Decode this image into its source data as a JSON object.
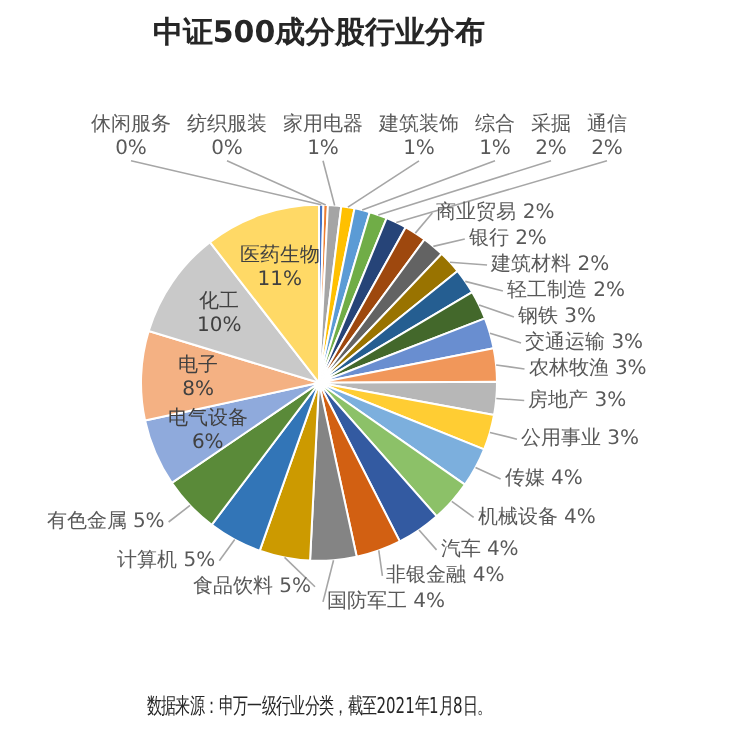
{
  "chart_data": {
    "type": "pie",
    "title": "中证500成分股行业分布",
    "categories": [
      "休闲服务",
      "纺织服装",
      "家用电器",
      "建筑装饰",
      "综合",
      "采掘",
      "通信",
      "商业贸易",
      "银行",
      "建筑材料",
      "轻工制造",
      "钢铁",
      "交通运输",
      "农林牧渔",
      "房地产",
      "公用事业",
      "传媒",
      "机械设备",
      "汽车",
      "非银金融",
      "国防军工",
      "食品饮料",
      "计算机",
      "有色金属",
      "电气设备",
      "电子",
      "化工",
      "医药生物"
    ],
    "values": [
      0.4,
      0.4,
      1.2,
      1.2,
      1.4,
      1.6,
      1.9,
      2.0,
      2.0,
      2.1,
      2.3,
      2.6,
      2.8,
      3.0,
      3.0,
      3.2,
      3.6,
      3.8,
      4.0,
      4.1,
      4.2,
      4.6,
      4.9,
      5.2,
      6.1,
      8.1,
      9.8,
      10.5
    ],
    "value_labels": [
      "0%",
      "0%",
      "1%",
      "1%",
      "1%",
      "2%",
      "2%",
      "2%",
      "2%",
      "2%",
      "2%",
      "3%",
      "3%",
      "3%",
      "3%",
      "3%",
      "4%",
      "4%",
      "4%",
      "4%",
      "4%",
      "5%",
      "5%",
      "5%",
      "6%",
      "8%",
      "10%",
      "11%"
    ],
    "colors": [
      "#4472c4",
      "#ed7d31",
      "#a5a5a5",
      "#ffc000",
      "#5b9bd5",
      "#70ad47",
      "#264478",
      "#9e480e",
      "#636363",
      "#997300",
      "#255e91",
      "#43682b",
      "#698ed0",
      "#f1975a",
      "#b7b7b7",
      "#ffcd33",
      "#7cafdd",
      "#8cc168",
      "#335aa1",
      "#d26012",
      "#848484",
      "#cc9a00",
      "#3275b7",
      "#5a8a39",
      "#8faadc",
      "#f4b183",
      "#c9c9c9",
      "#ffd966"
    ],
    "legend": false,
    "annotations": [
      "数据来源：申万一级行业分类，截至2021年1月8日。"
    ]
  }
}
